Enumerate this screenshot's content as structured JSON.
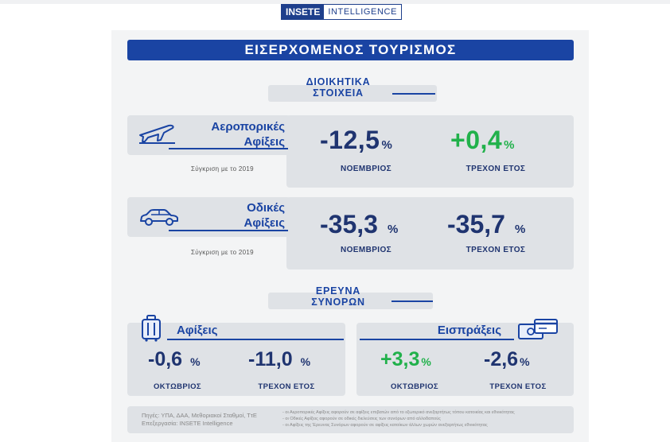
{
  "logo": {
    "part_a": "INSETE",
    "part_b": "INTELLIGENCE"
  },
  "banner": {
    "title": "ΕΙΣΕΡΧΟΜΕΝΟΣ ΤΟΥΡΙΣΜΟΣ"
  },
  "admin_section": {
    "title_line1": "ΔΙΟΙΚΗΤΙΚΑ",
    "title_line2": "ΣΤΟΙΧΕΙΑ"
  },
  "air": {
    "label_line1": "Αεροπορικές",
    "label_line2": "Αφίξεις",
    "comparison": "Σύγκριση με το 2019",
    "month_value": "-12,5",
    "month_unit": "%",
    "month_label": "ΝΟΕΜΒΡΙΟΣ",
    "year_value": "+0,4",
    "year_unit": "%",
    "year_label": "ΤΡΕΧΟΝ ΕΤΟΣ",
    "icon": "airplane-icon"
  },
  "road": {
    "label_line1": "Οδικές",
    "label_line2": "Αφίξεις",
    "comparison": "Σύγκριση με το 2019",
    "month_value": "-35,3",
    "month_unit": "%",
    "month_label": "ΝΟΕΜΒΡΙΟΣ",
    "year_value": "-35,7",
    "year_unit": "%",
    "year_label": "ΤΡΕΧΟΝ ΕΤΟΣ",
    "icon": "car-icon"
  },
  "border_section": {
    "title_line1": "ΕΡΕΥΝΑ",
    "title_line2": "ΣΥΝΟΡΩΝ"
  },
  "arrivals": {
    "label": "Αφίξεις",
    "month_value": "-0,6",
    "month_unit": "%",
    "month_label": "ΟΚΤΩΒΡΙΟΣ",
    "year_value": "-11,0",
    "year_unit": "%",
    "year_label": "ΤΡΕΧΟΝ ΕΤΟΣ",
    "icon": "luggage-icon"
  },
  "receipts": {
    "label": "Εισπράξεις",
    "month_value": "+3,3",
    "month_unit": "%",
    "month_label": "ΟΚΤΩΒΡΙΟΣ",
    "year_value": "-2,6",
    "year_unit": "%",
    "year_label": "ΤΡΕΧΟΝ ΕΤΟΣ",
    "icon": "money-card-icon"
  },
  "sources": {
    "line1": "Πηγές: ΥΠΑ, ΔΑΑ, Μεθοριακοί Σταθμοί, ΤτΕ",
    "line2": "Επεξεργασία: INSETE Intelligence",
    "note1": "- οι Αεροπορικές Αφίξεις αφορούν σε αφίξεις επιβατών από το εξωτερικό ανεξαρτήτως τόπου κατοικίας και εθνικότητας",
    "note2": "- οι Οδικές Αφίξεις αφορούν σε οδικές διελεύσεις των συνόρων από αλλοδαπούς",
    "note3": "- οι Αφίξεις της Έρευνας Συνόρων αφορούν σε αφίξεις κατοίκων άλλων χωρών ανεξαρτήτως εθνικότητας"
  },
  "colors": {
    "brand_blue": "#1a44a3",
    "dark_text": "#1f3470",
    "positive_green": "#21b14b",
    "panel_grey": "#dfe2e6"
  }
}
